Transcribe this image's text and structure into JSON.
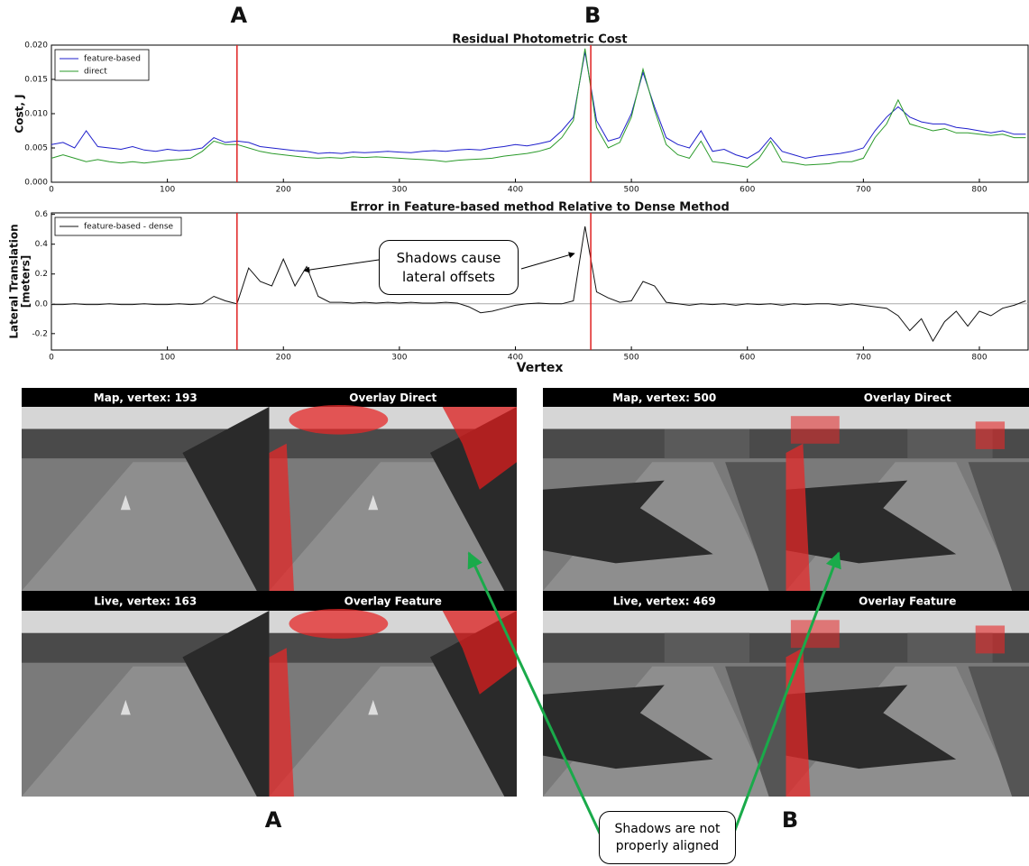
{
  "chart_data": [
    {
      "type": "line",
      "title": "Residual Photometric Cost",
      "ylabel": [
        "Cost, J"
      ],
      "x": [
        0,
        10,
        20,
        30,
        40,
        50,
        60,
        70,
        80,
        90,
        100,
        110,
        120,
        130,
        140,
        150,
        160,
        170,
        180,
        190,
        200,
        210,
        220,
        230,
        240,
        250,
        260,
        270,
        280,
        290,
        300,
        310,
        320,
        330,
        340,
        350,
        360,
        370,
        380,
        390,
        400,
        410,
        420,
        430,
        440,
        450,
        460,
        470,
        480,
        490,
        500,
        510,
        520,
        530,
        540,
        550,
        560,
        570,
        580,
        590,
        600,
        610,
        620,
        630,
        640,
        650,
        660,
        670,
        680,
        690,
        700,
        710,
        720,
        730,
        740,
        750,
        760,
        770,
        780,
        790,
        800,
        810,
        820,
        830,
        840
      ],
      "series": [
        {
          "name": "feature-based",
          "color": "#1f1fcc",
          "values": [
            0.0055,
            0.0058,
            0.005,
            0.0075,
            0.0052,
            0.005,
            0.0048,
            0.0052,
            0.0047,
            0.0045,
            0.0048,
            0.0046,
            0.0047,
            0.005,
            0.0065,
            0.0058,
            0.006,
            0.0058,
            0.0052,
            0.005,
            0.0048,
            0.0046,
            0.0045,
            0.0042,
            0.0043,
            0.0042,
            0.0044,
            0.0043,
            0.0044,
            0.0045,
            0.0044,
            0.0043,
            0.0045,
            0.0046,
            0.0045,
            0.0047,
            0.0048,
            0.0047,
            0.005,
            0.0052,
            0.0055,
            0.0053,
            0.0056,
            0.006,
            0.0075,
            0.0095,
            0.019,
            0.009,
            0.006,
            0.0065,
            0.01,
            0.016,
            0.011,
            0.0065,
            0.0055,
            0.005,
            0.0075,
            0.0045,
            0.0048,
            0.004,
            0.0035,
            0.0045,
            0.0065,
            0.0045,
            0.004,
            0.0035,
            0.0038,
            0.004,
            0.0042,
            0.0045,
            0.005,
            0.0075,
            0.0095,
            0.011,
            0.0095,
            0.0088,
            0.0085,
            0.0085,
            0.008,
            0.0078,
            0.0075,
            0.0072,
            0.0075,
            0.007,
            0.007
          ]
        },
        {
          "name": "direct",
          "color": "#2a9a2a",
          "values": [
            0.0035,
            0.004,
            0.0035,
            0.003,
            0.0033,
            0.003,
            0.0028,
            0.003,
            0.0028,
            0.003,
            0.0032,
            0.0033,
            0.0035,
            0.0045,
            0.006,
            0.0055,
            0.0055,
            0.005,
            0.0045,
            0.0042,
            0.004,
            0.0038,
            0.0036,
            0.0035,
            0.0036,
            0.0035,
            0.0037,
            0.0036,
            0.0037,
            0.0036,
            0.0035,
            0.0034,
            0.0033,
            0.0032,
            0.003,
            0.0032,
            0.0033,
            0.0034,
            0.0035,
            0.0038,
            0.004,
            0.0042,
            0.0045,
            0.005,
            0.0065,
            0.009,
            0.0195,
            0.008,
            0.005,
            0.0058,
            0.0095,
            0.0165,
            0.0105,
            0.0055,
            0.004,
            0.0035,
            0.006,
            0.003,
            0.0028,
            0.0025,
            0.0022,
            0.0035,
            0.006,
            0.003,
            0.0028,
            0.0025,
            0.0026,
            0.0027,
            0.003,
            0.003,
            0.0035,
            0.0065,
            0.0085,
            0.012,
            0.0085,
            0.008,
            0.0075,
            0.0078,
            0.0072,
            0.0072,
            0.007,
            0.0068,
            0.007,
            0.0065,
            0.0065
          ]
        }
      ],
      "xlim": [
        0,
        842
      ],
      "xticks": [
        0,
        100,
        200,
        300,
        400,
        500,
        600,
        700,
        800
      ],
      "ylim": [
        0,
        0.02
      ],
      "yticks": [
        {
          "value": 0,
          "label": "0.000"
        },
        {
          "value": 0.005,
          "label": "0.005"
        },
        {
          "value": 0.01,
          "label": "0.010"
        },
        {
          "value": 0.015,
          "label": "0.015"
        },
        {
          "value": 0.02,
          "label": "0.020"
        }
      ],
      "vlines": [
        160,
        465
      ],
      "vline_color": "#e02020",
      "legend": "upper left"
    },
    {
      "type": "line",
      "title": "Error in Feature-based method Relative to Dense Method",
      "ylabel": [
        "Lateral Translation",
        "[meters]"
      ],
      "xlabel": "Vertex",
      "x": [
        0,
        10,
        20,
        30,
        40,
        50,
        60,
        70,
        80,
        90,
        100,
        110,
        120,
        130,
        140,
        150,
        160,
        170,
        180,
        190,
        200,
        210,
        220,
        230,
        240,
        250,
        260,
        270,
        280,
        290,
        300,
        310,
        320,
        330,
        340,
        350,
        360,
        370,
        380,
        390,
        400,
        410,
        420,
        430,
        440,
        450,
        460,
        470,
        480,
        490,
        500,
        510,
        520,
        530,
        540,
        550,
        560,
        570,
        580,
        590,
        600,
        610,
        620,
        630,
        640,
        650,
        660,
        670,
        680,
        690,
        700,
        710,
        720,
        730,
        740,
        750,
        760,
        770,
        780,
        790,
        800,
        810,
        820,
        830,
        840
      ],
      "series": [
        {
          "name": "feature-based - dense",
          "color": "#111111",
          "values": [
            -0.005,
            -0.005,
            0,
            -0.005,
            -0.005,
            0,
            -0.005,
            -0.005,
            0,
            -0.005,
            -0.005,
            0,
            -0.005,
            0,
            0.05,
            0.02,
            0,
            0.24,
            0.15,
            0.12,
            0.3,
            0.12,
            0.25,
            0.05,
            0.01,
            0.01,
            0.005,
            0.01,
            0.005,
            0.01,
            0.005,
            0.01,
            0.005,
            0.005,
            0.01,
            0.005,
            -0.02,
            -0.06,
            -0.05,
            -0.03,
            -0.01,
            0,
            0.005,
            0,
            0,
            0.02,
            0.52,
            0.08,
            0.04,
            0.01,
            0.02,
            0.15,
            0.12,
            0.01,
            0,
            -0.01,
            0,
            -0.005,
            0,
            -0.01,
            0,
            -0.005,
            0,
            -0.01,
            0,
            -0.005,
            0,
            0,
            -0.01,
            0,
            -0.01,
            -0.02,
            -0.03,
            -0.08,
            -0.18,
            -0.1,
            -0.25,
            -0.12,
            -0.05,
            -0.15,
            -0.05,
            -0.08,
            -0.03,
            -0.01,
            0.02
          ]
        }
      ],
      "xlim": [
        0,
        842
      ],
      "xticks": [
        0,
        100,
        200,
        300,
        400,
        500,
        600,
        700,
        800
      ],
      "ylim": [
        -0.31,
        0.61
      ],
      "yticks": [
        -0.2,
        {
          "value": 0,
          "label": "0.0"
        },
        0.2,
        0.4,
        0.6
      ],
      "vlines": [
        160,
        465
      ],
      "vline_color": "#e02020",
      "legend": "upper left",
      "zero_line": true,
      "annotation": "Shadows cause lateral offsets"
    }
  ],
  "markers": {
    "top": [
      "A",
      "B"
    ],
    "bottom": [
      "A",
      "B"
    ]
  },
  "panels": [
    {
      "titles": [
        "Map, vertex: 193",
        "Overlay Direct",
        "Live, vertex: 163",
        "Overlay Feature"
      ]
    },
    {
      "titles": [
        "Map, vertex: 500",
        "Overlay Direct",
        "Live, vertex: 469",
        "Overlay Feature"
      ]
    }
  ],
  "callout": "Shadows are not properly aligned"
}
